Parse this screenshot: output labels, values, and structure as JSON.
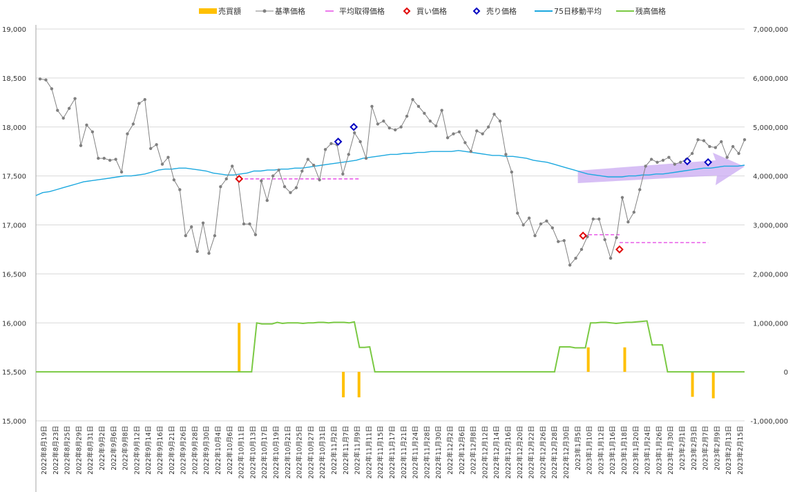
{
  "chart_data": {
    "type": "line",
    "legend": {
      "position": "top",
      "items": [
        {
          "name": "売買額",
          "kind": "bar",
          "color": "#FFC000"
        },
        {
          "name": "基準価格",
          "kind": "line-marker",
          "color": "#808080"
        },
        {
          "name": "平均取得価格",
          "kind": "dash",
          "color": "#E64DE6"
        },
        {
          "name": "買い価格",
          "kind": "diamond",
          "color": "#E00000"
        },
        {
          "name": "売り価格",
          "kind": "diamond",
          "color": "#0000C0"
        },
        {
          "name": "75日移動平均",
          "kind": "line",
          "color": "#1BA8DF"
        },
        {
          "name": "残高価格",
          "kind": "line",
          "color": "#7AC943"
        }
      ]
    },
    "y_left": {
      "min": 15000,
      "max": 19000,
      "ticks": [
        "15,000",
        "15,500",
        "16,000",
        "16,500",
        "17,000",
        "17,500",
        "18,000",
        "18,500",
        "19,000"
      ]
    },
    "y_right": {
      "min": -1000000,
      "max": 7000000,
      "ticks": [
        "-1,000,000",
        "0",
        "1,000,000",
        "2,000,000",
        "3,000,000",
        "4,000,000",
        "5,000,000",
        "6,000,000",
        "7,000,000"
      ]
    },
    "x_labels": [
      "2022年8月19日",
      "2022年8月23日",
      "2022年8月25日",
      "2022年8月29日",
      "2022年8月31日",
      "2022年9月2日",
      "2022年9月6日",
      "2022年9月8日",
      "2022年9月12日",
      "2022年9月14日",
      "2022年9月16日",
      "2022年9月21日",
      "2022年9月26日",
      "2022年9月28日",
      "2022年9月30日",
      "2022年10月4日",
      "2022年10月6日",
      "2022年10月11日",
      "2022年10月13日",
      "2022年10月17日",
      "2022年10月19日",
      "2022年10月21日",
      "2022年10月25日",
      "2022年10月27日",
      "2022年10月31日",
      "2022年11月2日",
      "2022年11月7日",
      "2022年11月9日",
      "2022年11月11日",
      "2022年11月15日",
      "2022年11月17日",
      "2022年11月21日",
      "2022年11月24日",
      "2022年11月28日",
      "2022年11月30日",
      "2022年12月2日",
      "2022年12月6日",
      "2022年12月8日",
      "2022年12月12日",
      "2022年12月14日",
      "2022年12月16日",
      "2022年12月20日",
      "2022年12月22日",
      "2022年12月26日",
      "2022年12月28日",
      "2022年12月30日",
      "2023年1月5日",
      "2023年1月10日",
      "2023年1月12日",
      "2023年1月16日",
      "2023年1月18日",
      "2023年1月20日",
      "2023年1月24日",
      "2023年1月26日",
      "2023年1月30日",
      "2023年2月1日",
      "2023年2月3日",
      "2023年2月7日",
      "2023年2月9日",
      "2023年2月13日",
      "2023年2月15日"
    ],
    "series": [
      {
        "name": "基準価格",
        "values": [
          18490,
          18480,
          18390,
          18170,
          18090,
          18190,
          18290,
          17810,
          18020,
          17950,
          17680,
          17680,
          17660,
          17670,
          17540,
          17930,
          18030,
          18240,
          18280,
          17780,
          17820,
          17620,
          17690,
          17460,
          17360,
          16890,
          16980,
          16730,
          17020,
          16710,
          16890,
          17390,
          17470,
          17600,
          17470,
          17010,
          17010,
          16900,
          17450,
          17250,
          17500,
          17560,
          17390,
          17330,
          17380,
          17550,
          17670,
          17610,
          17460,
          17770,
          17830,
          17820,
          17520,
          17720,
          17940,
          17850,
          17680,
          18210,
          18030,
          18060,
          17990,
          17970,
          18000,
          18110,
          18280,
          18210,
          18140,
          18060,
          18010,
          18170,
          17890,
          17930,
          17950,
          17840,
          17750,
          17960,
          17930,
          18000,
          18130,
          18060,
          17720,
          17540,
          17120,
          17000,
          17070,
          16890,
          17010,
          17040,
          16970,
          16830,
          16840,
          16590,
          16660,
          16750,
          16880,
          17060,
          17060,
          16850,
          16660,
          16870,
          17280,
          17030,
          17130,
          17360,
          17600,
          17670,
          17640,
          17660,
          17690,
          17620,
          17640,
          17670,
          17730,
          17870,
          17860,
          17800,
          17790,
          17850,
          17690,
          17800,
          17730,
          17870
        ]
      },
      {
        "name": "75日移動平均",
        "values": [
          17300,
          17330,
          17340,
          17360,
          17380,
          17400,
          17420,
          17440,
          17450,
          17460,
          17470,
          17480,
          17490,
          17500,
          17500,
          17510,
          17520,
          17540,
          17560,
          17570,
          17570,
          17580,
          17580,
          17570,
          17560,
          17550,
          17530,
          17520,
          17510,
          17510,
          17520,
          17530,
          17550,
          17550,
          17560,
          17560,
          17570,
          17570,
          17580,
          17580,
          17590,
          17600,
          17610,
          17620,
          17630,
          17640,
          17650,
          17660,
          17680,
          17690,
          17700,
          17710,
          17720,
          17720,
          17730,
          17730,
          17740,
          17740,
          17750,
          17750,
          17750,
          17750,
          17760,
          17750,
          17740,
          17730,
          17720,
          17710,
          17710,
          17700,
          17700,
          17690,
          17680,
          17660,
          17650,
          17640,
          17620,
          17600,
          17580,
          17560,
          17540,
          17520,
          17510,
          17500,
          17490,
          17490,
          17490,
          17500,
          17500,
          17510,
          17510,
          17520,
          17520,
          17530,
          17540,
          17550,
          17560,
          17570,
          17580,
          17580,
          17590,
          17600,
          17600,
          17600,
          17610
        ]
      },
      {
        "name": "残高価格",
        "values": [
          0,
          0,
          0,
          0,
          0,
          0,
          0,
          0,
          0,
          0,
          0,
          0,
          0,
          0,
          0,
          0,
          0,
          0,
          0,
          0,
          0,
          0,
          0,
          0,
          0,
          0,
          0,
          0,
          0,
          0,
          0,
          0,
          0,
          0,
          0,
          0,
          0,
          0,
          0,
          0,
          0,
          0,
          0,
          1000000,
          980000,
          980000,
          980000,
          1010000,
          990000,
          1000000,
          1000000,
          1000000,
          990000,
          1000000,
          1000000,
          1010000,
          1010000,
          1000000,
          1010000,
          1010000,
          1010000,
          1000000,
          1020000,
          500000,
          500000,
          510000,
          0,
          0,
          0,
          0,
          0,
          0,
          0,
          0,
          0,
          0,
          0,
          0,
          0,
          0,
          0,
          0,
          0,
          0,
          0,
          0,
          0,
          0,
          0,
          0,
          0,
          0,
          0,
          0,
          0,
          0,
          0,
          0,
          0,
          0,
          0,
          0,
          510000,
          510000,
          510000,
          490000,
          490000,
          490000,
          1000000,
          1000000,
          1010000,
          1010000,
          1000000,
          990000,
          1000000,
          1010000,
          1010000,
          1020000,
          1030000,
          1040000,
          550000,
          550000,
          550000,
          0,
          0,
          0,
          0,
          0,
          0,
          0,
          0,
          0,
          0,
          0,
          0,
          0,
          0,
          0,
          0
        ]
      },
      {
        "name": "買い価格",
        "points": [
          {
            "index": 39,
            "value": 17470
          },
          {
            "index": 105,
            "value": 16890
          },
          {
            "index": 112,
            "value": 16750
          }
        ]
      },
      {
        "name": "売り価格",
        "points": [
          {
            "index": 58,
            "value": 17850
          },
          {
            "index": 61,
            "value": 18000
          },
          {
            "index": 125,
            "value": 17650
          },
          {
            "index": 129,
            "value": 17640
          }
        ]
      },
      {
        "name": "平均取得価格",
        "segments": [
          {
            "from": 39,
            "to": 62,
            "value": 17470
          },
          {
            "from": 105,
            "to": 112,
            "value": 16900
          },
          {
            "from": 112,
            "to": 129,
            "value": 16820
          }
        ]
      },
      {
        "name": "売買額",
        "bars": [
          {
            "index": 39,
            "value": 1000000
          },
          {
            "index": 59,
            "value": -520000
          },
          {
            "index": 62,
            "value": -520000
          },
          {
            "index": 106,
            "value": 500000
          },
          {
            "index": 113,
            "value": 500000
          },
          {
            "index": 126,
            "value": -510000
          },
          {
            "index": 130,
            "value": -540000
          }
        ]
      }
    ],
    "annotation": {
      "type": "arrow",
      "color": "#C9A9F2",
      "from_index": 104,
      "to_index": 125
    }
  }
}
